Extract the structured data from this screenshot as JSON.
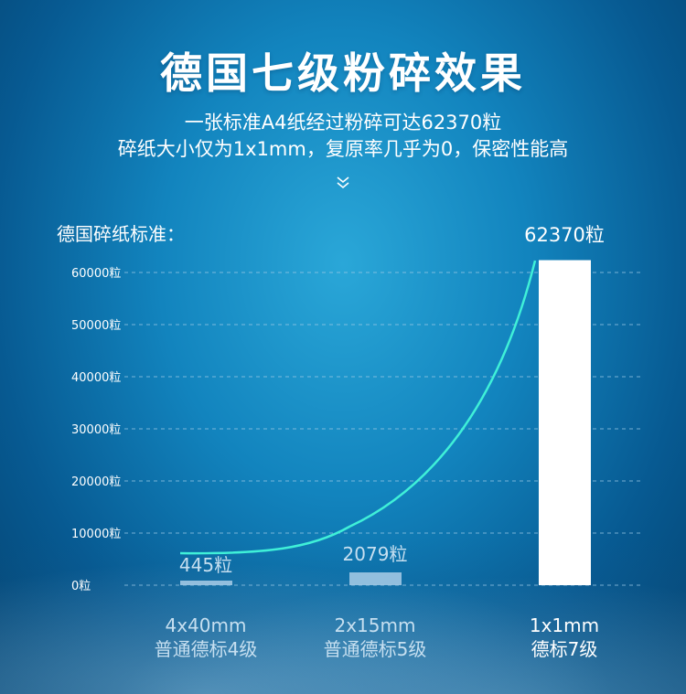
{
  "title": "德国七级粉碎效果",
  "subtitle_lines": [
    "一张标准A4纸经过粉碎可达62370粒",
    "碎纸大小仅为1x1mm，复原率几乎为0，保密性能高"
  ],
  "icons": {
    "scroll": "double-chevron-down-icon"
  },
  "colors": {
    "curve": "#3ff0d8",
    "bar_main": "#ffffff",
    "bar_small": "#a9cde8",
    "grid": "#9cc9e6"
  },
  "chart_data": {
    "type": "bar",
    "title": "德国碎纸标准：",
    "y_unit": "粒",
    "ylim": [
      0,
      62370
    ],
    "y_ticks": [
      0,
      10000,
      20000,
      30000,
      40000,
      50000,
      60000
    ],
    "y_tick_labels": [
      "0粒",
      "10000粒",
      "20000粒",
      "30000粒",
      "40000粒",
      "50000粒",
      "60000粒"
    ],
    "grid": true,
    "categories": [
      {
        "size": "4x40mm",
        "level": "普通德标4级"
      },
      {
        "size": "2x15mm",
        "level": "普通德标5级"
      },
      {
        "size": "1x1mm",
        "level": "德标7级"
      }
    ],
    "values": [
      445,
      2079,
      62370
    ],
    "value_labels": [
      "445粒",
      "2079粒",
      "62370粒"
    ],
    "trend_curve": true
  }
}
